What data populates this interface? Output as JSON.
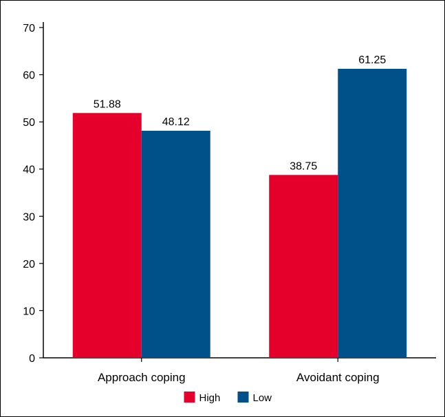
{
  "chart_data": {
    "type": "bar",
    "title": "",
    "xlabel": "",
    "ylabel": "",
    "categories": [
      "Approach coping",
      "Avoidant coping"
    ],
    "series": [
      {
        "name": "High",
        "color": "#e4002b",
        "values": [
          51.88,
          38.75
        ],
        "labels": [
          "51.88",
          "38.75"
        ]
      },
      {
        "name": "Low",
        "color": "#00508a",
        "values": [
          48.12,
          61.25
        ],
        "labels": [
          "48.12",
          "61.25"
        ]
      }
    ],
    "ylim": [
      0,
      70
    ],
    "yticks": [
      "0",
      "10",
      "20",
      "30",
      "40",
      "50",
      "60",
      "70"
    ],
    "grid": false,
    "legend_position": "bottom-center"
  }
}
